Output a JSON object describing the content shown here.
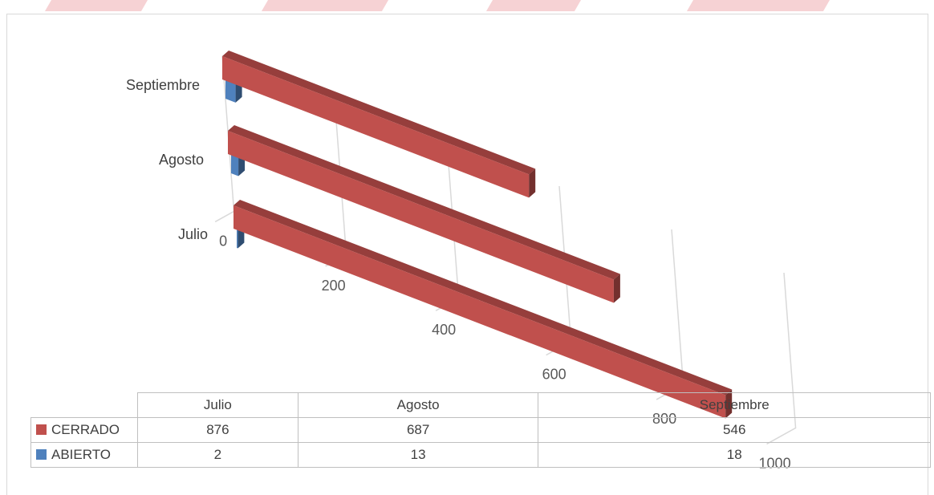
{
  "chart_data": {
    "type": "bar",
    "orientation": "horizontal",
    "style": "3d",
    "categories": [
      "Julio",
      "Agosto",
      "Septiembre"
    ],
    "series": [
      {
        "name": "CERRADO",
        "values": [
          876,
          687,
          546
        ],
        "color": "#c0504d"
      },
      {
        "name": "ABIERTO",
        "values": [
          2,
          13,
          18
        ],
        "color": "#4f81bd"
      }
    ],
    "xticks": [
      "0",
      "200",
      "400",
      "600",
      "800",
      "1000"
    ],
    "xlim": [
      0,
      1000
    ],
    "grid": true,
    "legend": "data-table-below"
  },
  "table": {
    "headers": [
      "Julio",
      "Agosto",
      "Septiembre"
    ],
    "rows": [
      {
        "label": "CERRADO",
        "values": [
          "876",
          "687",
          "546"
        ]
      },
      {
        "label": "ABIERTO",
        "values": [
          "2",
          "13",
          "18"
        ]
      }
    ]
  },
  "colors": {
    "cerrado": "#c0504d",
    "abierto": "#4f81bd",
    "grid": "#d9d9d9"
  }
}
